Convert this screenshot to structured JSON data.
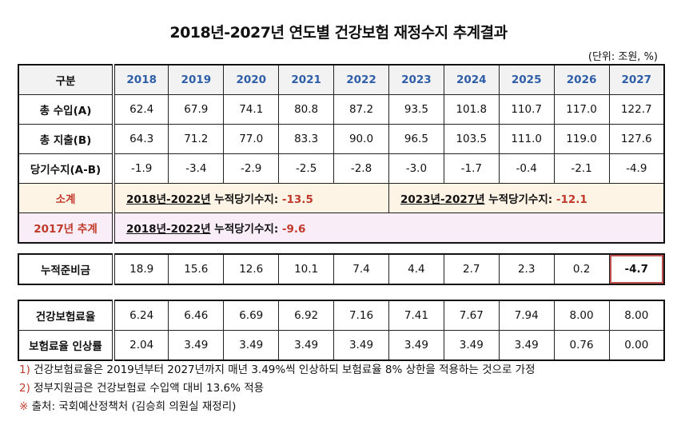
{
  "title": "2018년-2027년 연도별 건강보험 재정수지 추계결과",
  "unit": "(단위: 조원, %)",
  "header": {
    "label": "구분",
    "years": [
      "2018",
      "2019",
      "2020",
      "2021",
      "2022",
      "2023",
      "2024",
      "2025",
      "2026",
      "2027"
    ]
  },
  "rows": [
    {
      "label": "총 수입(A)",
      "values": [
        "62.4",
        "67.9",
        "74.1",
        "80.8",
        "87.2",
        "93.5",
        "101.8",
        "110.7",
        "117.0",
        "122.7"
      ]
    },
    {
      "label": "총 지출(B)",
      "values": [
        "64.3",
        "71.2",
        "77.0",
        "83.3",
        "90.0",
        "96.5",
        "103.5",
        "111.0",
        "119.0",
        "127.6"
      ]
    },
    {
      "label": "당기수지(A-B)",
      "values": [
        "-1.9",
        "-3.4",
        "-2.9",
        "-2.5",
        "-2.8",
        "-3.0",
        "-1.7",
        "-0.4",
        "-2.1",
        "-4.9"
      ]
    }
  ],
  "subtotal": {
    "label": "소계",
    "p1": {
      "period": "2018년-2022년",
      "text": "누적당기수지:",
      "value": "-13.5"
    },
    "p2": {
      "period": "2023년-2027년",
      "text": "누적당기수지:",
      "value": "-12.1"
    }
  },
  "prev": {
    "label": "2017년 추계",
    "period": "2018년-2022년",
    "text": "누적당기수지:",
    "value": "-9.6"
  },
  "reserve": {
    "label": "누적준비금",
    "values": [
      "18.9",
      "15.6",
      "12.6",
      "10.1",
      "7.4",
      "4.4",
      "2.7",
      "2.3",
      "0.2",
      "-4.7"
    ]
  },
  "rates": [
    {
      "label": "건강보험료율",
      "values": [
        "6.24",
        "6.46",
        "6.69",
        "6.92",
        "7.16",
        "7.41",
        "7.67",
        "7.94",
        "8.00",
        "8.00"
      ]
    },
    {
      "label": "보험료율 인상률",
      "values": [
        "2.04",
        "3.49",
        "3.49",
        "3.49",
        "3.49",
        "3.49",
        "3.49",
        "3.49",
        "0.76",
        "0.00"
      ]
    }
  ],
  "notes": [
    {
      "mark": "1)",
      "text": "건강보험료율은 2019년부터 2027년까지 매년 3.49%씩 인상하되 보험료율 8% 상한을 적용하는 것으로 가정"
    },
    {
      "mark": "2)",
      "text": "정부지원금은 건강보험료 수입액 대비 13.6% 적용"
    },
    {
      "mark": "※",
      "text": "출처: 국회예산정책처 (김승희 의원실 재정리)"
    }
  ],
  "colors": {
    "year_header": "#2f5ea8",
    "highlight": "#c0392b",
    "subtotal_bg": "#fdf4e6",
    "prev_bg": "#f9eef7"
  }
}
